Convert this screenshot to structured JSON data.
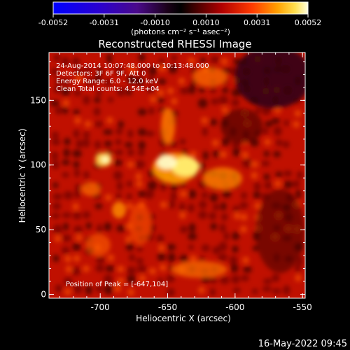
{
  "colorbar": {
    "ticks": [
      "-0.0052",
      "-0.0031",
      "-0.0010",
      "0.0010",
      "0.0031",
      "0.0052"
    ],
    "unit_label": "(photons cm⁻² s⁻¹ asec⁻²)"
  },
  "chart_data": {
    "type": "heatmap",
    "title": "Reconstructed RHESSI Image",
    "xlabel": "Heliocentric X (arcsec)",
    "ylabel": "Heliocentric Y (arcsec)",
    "xlim": [
      -738,
      -548
    ],
    "ylim": [
      -3,
      187
    ],
    "x_ticks": [
      "-700",
      "-650",
      "-600",
      "-550"
    ],
    "x_tick_values": [
      -700,
      -650,
      -600,
      -550
    ],
    "y_ticks": [
      "0",
      "50",
      "100",
      "150"
    ],
    "y_tick_values": [
      0,
      50,
      100,
      150
    ],
    "clim": [
      -0.0052,
      0.0052
    ],
    "colormap": "rhessi-hot",
    "annotations": [
      "24-Aug-2014 10:07:48.000 to 10:13:48.000",
      "Detectors: 3F 6F 9F, Att 0",
      "Energy Range: 6.0 - 12.0 keV",
      "Clean     Total counts: 4.54E+04"
    ],
    "peak_label": "Position of Peak = [-647,104]",
    "peak": [
      -647,
      104
    ]
  },
  "footer": {
    "timestamp": "16-May-2022 09:45"
  }
}
